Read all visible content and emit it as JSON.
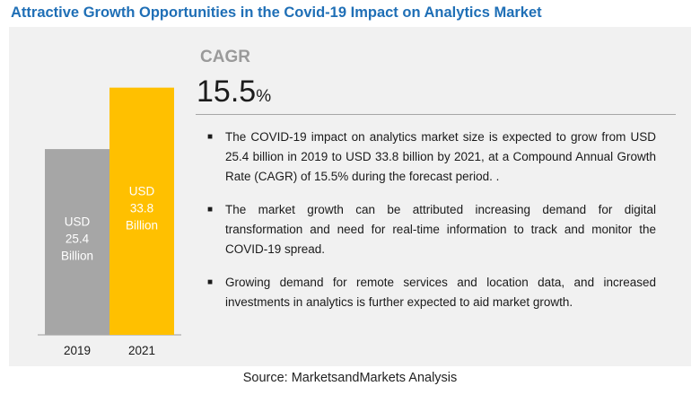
{
  "title": "Attractive Growth Opportunities in the Covid-19 Impact on Analytics Market",
  "cagr": {
    "label": "CAGR",
    "value": "15.5",
    "unit": "%"
  },
  "bullets": [
    "The COVID-19 impact on analytics market size is expected to grow from USD 25.4 billion in 2019 to USD 33.8 billion by 2021, at a Compound Annual Growth Rate (CAGR) of 15.5% during the forecast period. .",
    "The market growth can be attributed increasing demand for digital transformation and need for real-time information to track and monitor the COVID-19 spread.",
    "Growing demand for remote services and location data, and increased investments in analytics is further expected to aid market growth."
  ],
  "bullet_icon": "square-bullet",
  "source": "Source: MarketsandMarkets Analysis",
  "colors": {
    "title": "#1f6fb6",
    "bar_2019": "#a6a6a6",
    "bar_2021": "#ffc000",
    "panel": "#f1f1f1"
  },
  "chart_data": {
    "type": "bar",
    "categories": [
      "2019",
      "2021"
    ],
    "values": [
      25.4,
      33.8
    ],
    "data_labels": [
      [
        "USD",
        "25.4",
        "Billion"
      ],
      [
        "USD",
        "33.8",
        "Billion"
      ]
    ],
    "title": "",
    "xlabel": "",
    "ylabel": "",
    "ylim": [
      0,
      34
    ],
    "grid": false
  }
}
